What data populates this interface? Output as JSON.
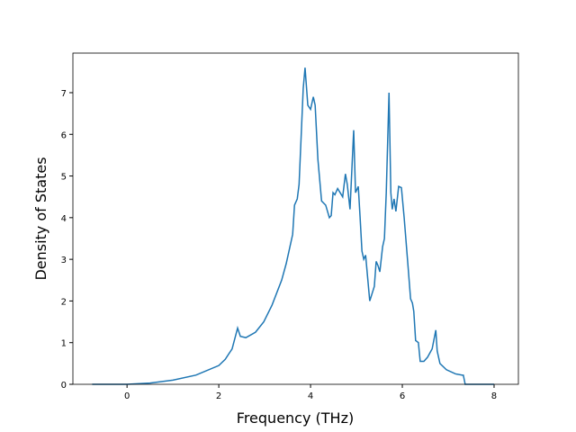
{
  "chart_data": {
    "type": "line",
    "x_label": "Frequency (THz)",
    "y_label": "Density of States",
    "xlim": [
      -1.18,
      8.53
    ],
    "ylim": [
      0,
      7.95
    ],
    "xticks": [
      0,
      2,
      4,
      6,
      8
    ],
    "yticks": [
      0,
      1,
      2,
      3,
      4,
      5,
      6,
      7
    ],
    "series": [
      {
        "color": "#1f77b4",
        "x": [
          -0.76,
          0,
          0.5,
          1.0,
          1.5,
          2.0,
          2.14,
          2.29,
          2.41,
          2.47,
          2.59,
          2.8,
          2.98,
          3.16,
          3.37,
          3.47,
          3.61,
          3.65,
          3.71,
          3.75,
          3.84,
          3.88,
          3.94,
          4.0,
          4.06,
          4.1,
          4.16,
          4.24,
          4.33,
          4.41,
          4.45,
          4.49,
          4.53,
          4.59,
          4.7,
          4.76,
          4.8,
          4.86,
          4.94,
          4.98,
          5.04,
          5.08,
          5.12,
          5.16,
          5.2,
          5.29,
          5.39,
          5.43,
          5.47,
          5.51,
          5.57,
          5.61,
          5.65,
          5.71,
          5.75,
          5.78,
          5.82,
          5.86,
          5.92,
          5.98,
          6.04,
          6.12,
          6.18,
          6.22,
          6.25,
          6.29,
          6.35,
          6.39,
          6.47,
          6.55,
          6.65,
          6.73,
          6.76,
          6.82,
          6.96,
          7.16,
          7.31,
          7.33,
          7.37,
          8.0
        ],
        "values": [
          0,
          0,
          0.03,
          0.1,
          0.22,
          0.45,
          0.6,
          0.85,
          1.35,
          1.15,
          1.12,
          1.25,
          1.5,
          1.9,
          2.5,
          2.9,
          3.6,
          4.3,
          4.45,
          4.8,
          7.1,
          7.6,
          6.7,
          6.6,
          6.9,
          6.7,
          5.4,
          4.4,
          4.3,
          4.0,
          4.05,
          4.6,
          4.55,
          4.7,
          4.5,
          5.05,
          4.8,
          4.2,
          6.1,
          4.6,
          4.75,
          4.0,
          3.2,
          3.0,
          3.1,
          2.0,
          2.35,
          2.95,
          2.85,
          2.7,
          3.3,
          3.5,
          4.6,
          7.0,
          4.6,
          4.2,
          4.45,
          4.15,
          4.75,
          4.72,
          4.0,
          2.9,
          2.05,
          1.95,
          1.75,
          1.05,
          1.0,
          0.55,
          0.55,
          0.65,
          0.85,
          1.3,
          0.8,
          0.5,
          0.35,
          0.25,
          0.22,
          0.22,
          0,
          0
        ]
      }
    ]
  }
}
